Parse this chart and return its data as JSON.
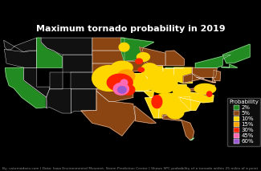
{
  "title": "Maximum tornado probability in 2019",
  "title_fontsize": 8.0,
  "title_color": "white",
  "background_color": "#000000",
  "legend_title": "Probability",
  "legend_entries": [
    "2%",
    "5%",
    "10%",
    "15%",
    "30%",
    "45%",
    "60%"
  ],
  "legend_colors": [
    "#228B22",
    "#8B4513",
    "#FFD700",
    "#FFA500",
    "#FF2200",
    "#FF69B4",
    "#9B59D0"
  ],
  "legend_fontsize": 5.0,
  "border_color": "white",
  "source_text": "By: ustornadoes.com | Data: Iowa Environmental Mesonet, Storm Prediction Center | Shows SPC probability of a tornado within 25 miles of a point",
  "source_fontsize": 3.2,
  "xlim": [
    -125,
    -65
  ],
  "ylim": [
    24,
    50
  ],
  "state_borders_lw": 0.25
}
